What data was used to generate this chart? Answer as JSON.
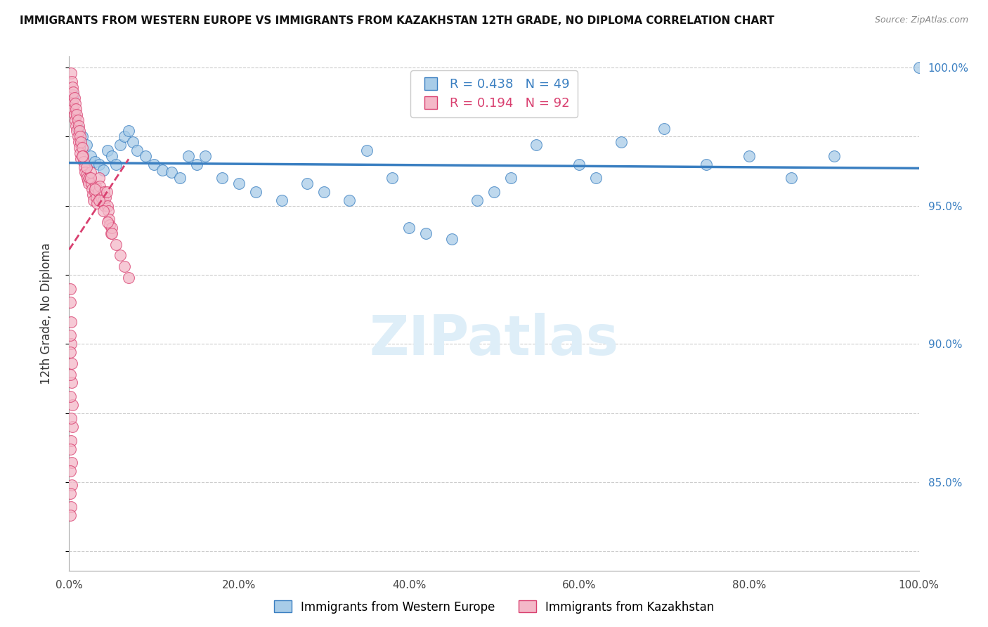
{
  "title": "IMMIGRANTS FROM WESTERN EUROPE VS IMMIGRANTS FROM KAZAKHSTAN 12TH GRADE, NO DIPLOMA CORRELATION CHART",
  "source": "Source: ZipAtlas.com",
  "ylabel": "12th Grade, No Diploma",
  "r_blue": 0.438,
  "n_blue": 49,
  "r_pink": 0.194,
  "n_pink": 92,
  "blue_color": "#a8cce8",
  "pink_color": "#f4b8c8",
  "trendline_blue_color": "#3a7fc1",
  "trendline_pink_color": "#d94070",
  "legend_label_blue": "Immigrants from Western Europe",
  "legend_label_pink": "Immigrants from Kazakhstan",
  "xlim": [
    0.0,
    1.0
  ],
  "ylim": [
    0.818,
    1.004
  ],
  "right_yticks": [
    0.85,
    0.9,
    0.95,
    1.0
  ],
  "right_yticklabels": [
    "85.0%",
    "90.0%",
    "95.0%",
    "100.0%"
  ],
  "xticks": [
    0.0,
    0.2,
    0.4,
    0.6,
    0.8,
    1.0
  ],
  "xticklabels": [
    "0.0%",
    "20.0%",
    "40.0%",
    "60.0%",
    "80.0%",
    "100.0%"
  ],
  "blue_x": [
    0.005,
    0.01,
    0.015,
    0.02,
    0.025,
    0.03,
    0.035,
    0.04,
    0.045,
    0.05,
    0.055,
    0.06,
    0.065,
    0.07,
    0.075,
    0.08,
    0.09,
    0.1,
    0.11,
    0.12,
    0.13,
    0.14,
    0.15,
    0.16,
    0.18,
    0.2,
    0.22,
    0.25,
    0.28,
    0.3,
    0.33,
    0.35,
    0.38,
    0.4,
    0.42,
    0.45,
    0.48,
    0.5,
    0.52,
    0.55,
    0.6,
    0.62,
    0.65,
    0.7,
    0.75,
    0.8,
    0.85,
    0.9,
    1.0
  ],
  "blue_y": [
    0.99,
    0.978,
    0.975,
    0.972,
    0.968,
    0.966,
    0.965,
    0.963,
    0.97,
    0.968,
    0.965,
    0.972,
    0.975,
    0.977,
    0.973,
    0.97,
    0.968,
    0.965,
    0.963,
    0.962,
    0.96,
    0.968,
    0.965,
    0.968,
    0.96,
    0.958,
    0.955,
    0.952,
    0.958,
    0.955,
    0.952,
    0.97,
    0.96,
    0.942,
    0.94,
    0.938,
    0.952,
    0.955,
    0.96,
    0.972,
    0.965,
    0.96,
    0.973,
    0.978,
    0.965,
    0.968,
    0.96,
    0.968,
    1.0
  ],
  "pink_x": [
    0.002,
    0.003,
    0.003,
    0.004,
    0.004,
    0.005,
    0.005,
    0.006,
    0.006,
    0.007,
    0.007,
    0.008,
    0.008,
    0.009,
    0.009,
    0.01,
    0.01,
    0.011,
    0.011,
    0.012,
    0.012,
    0.013,
    0.013,
    0.014,
    0.014,
    0.015,
    0.016,
    0.017,
    0.018,
    0.019,
    0.02,
    0.021,
    0.022,
    0.023,
    0.024,
    0.025,
    0.026,
    0.027,
    0.028,
    0.029,
    0.03,
    0.031,
    0.032,
    0.033,
    0.034,
    0.035,
    0.036,
    0.038,
    0.04,
    0.041,
    0.042,
    0.043,
    0.044,
    0.045,
    0.046,
    0.047,
    0.048,
    0.049,
    0.05,
    0.015,
    0.02,
    0.025,
    0.03,
    0.035,
    0.04,
    0.045,
    0.05,
    0.055,
    0.06,
    0.065,
    0.07,
    0.001,
    0.001,
    0.002,
    0.002,
    0.003,
    0.003,
    0.004,
    0.004,
    0.001,
    0.001,
    0.001,
    0.001,
    0.002,
    0.002,
    0.003,
    0.003,
    0.002,
    0.001,
    0.001,
    0.001,
    0.001
  ],
  "pink_y": [
    0.998,
    0.995,
    0.99,
    0.993,
    0.987,
    0.991,
    0.985,
    0.989,
    0.983,
    0.987,
    0.981,
    0.985,
    0.979,
    0.983,
    0.977,
    0.981,
    0.975,
    0.979,
    0.973,
    0.977,
    0.971,
    0.975,
    0.969,
    0.973,
    0.967,
    0.971,
    0.968,
    0.966,
    0.964,
    0.962,
    0.961,
    0.96,
    0.959,
    0.958,
    0.96,
    0.962,
    0.958,
    0.956,
    0.954,
    0.952,
    0.955,
    0.957,
    0.953,
    0.951,
    0.955,
    0.96,
    0.957,
    0.953,
    0.952,
    0.955,
    0.95,
    0.953,
    0.955,
    0.95,
    0.948,
    0.945,
    0.943,
    0.94,
    0.942,
    0.968,
    0.964,
    0.96,
    0.956,
    0.952,
    0.948,
    0.944,
    0.94,
    0.936,
    0.932,
    0.928,
    0.924,
    0.92,
    0.915,
    0.908,
    0.9,
    0.893,
    0.886,
    0.878,
    0.87,
    0.903,
    0.897,
    0.889,
    0.881,
    0.873,
    0.865,
    0.857,
    0.849,
    0.841,
    0.862,
    0.854,
    0.846,
    0.838
  ]
}
